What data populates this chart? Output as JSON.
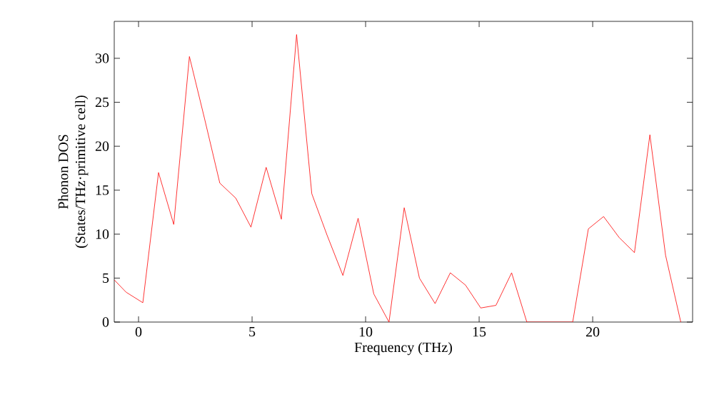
{
  "chart_data": {
    "type": "line",
    "xlabel": "Frequency (THz)",
    "ylabel": "Phonon DOS\n(States/THz·primitive cell)",
    "x": [
      -1.07,
      -0.55,
      0.19,
      0.88,
      1.55,
      2.24,
      2.91,
      3.58,
      4.28,
      4.95,
      5.62,
      6.29,
      6.96,
      7.63,
      8.3,
      9.0,
      9.67,
      10.36,
      11.03,
      11.7,
      12.37,
      13.06,
      13.73,
      14.4,
      15.07,
      15.74,
      16.43,
      17.1,
      19.12,
      19.81,
      20.48,
      21.17,
      21.84,
      22.52,
      23.21,
      23.88
    ],
    "series": [
      {
        "color": "#ff0000",
        "values": [
          4.8,
          3.4,
          2.2,
          17.0,
          11.1,
          30.2,
          23.1,
          15.8,
          14.1,
          10.8,
          17.6,
          11.7,
          32.7,
          14.6,
          9.9,
          5.3,
          11.8,
          3.2,
          0,
          13.0,
          5.0,
          2.1,
          5.6,
          4.2,
          1.6,
          1.9,
          5.6,
          0,
          0,
          10.6,
          12.0,
          9.6,
          7.9,
          21.3,
          7.6,
          0
        ]
      }
    ],
    "xlim": [
      -1.07,
      24.4
    ],
    "ylim": [
      0,
      34.2
    ],
    "xticks": [
      0,
      5,
      10,
      15,
      20
    ],
    "yticks": [
      0,
      5,
      10,
      15,
      20,
      25,
      30
    ],
    "grid": false,
    "marker": "none",
    "line_style": "solid"
  }
}
